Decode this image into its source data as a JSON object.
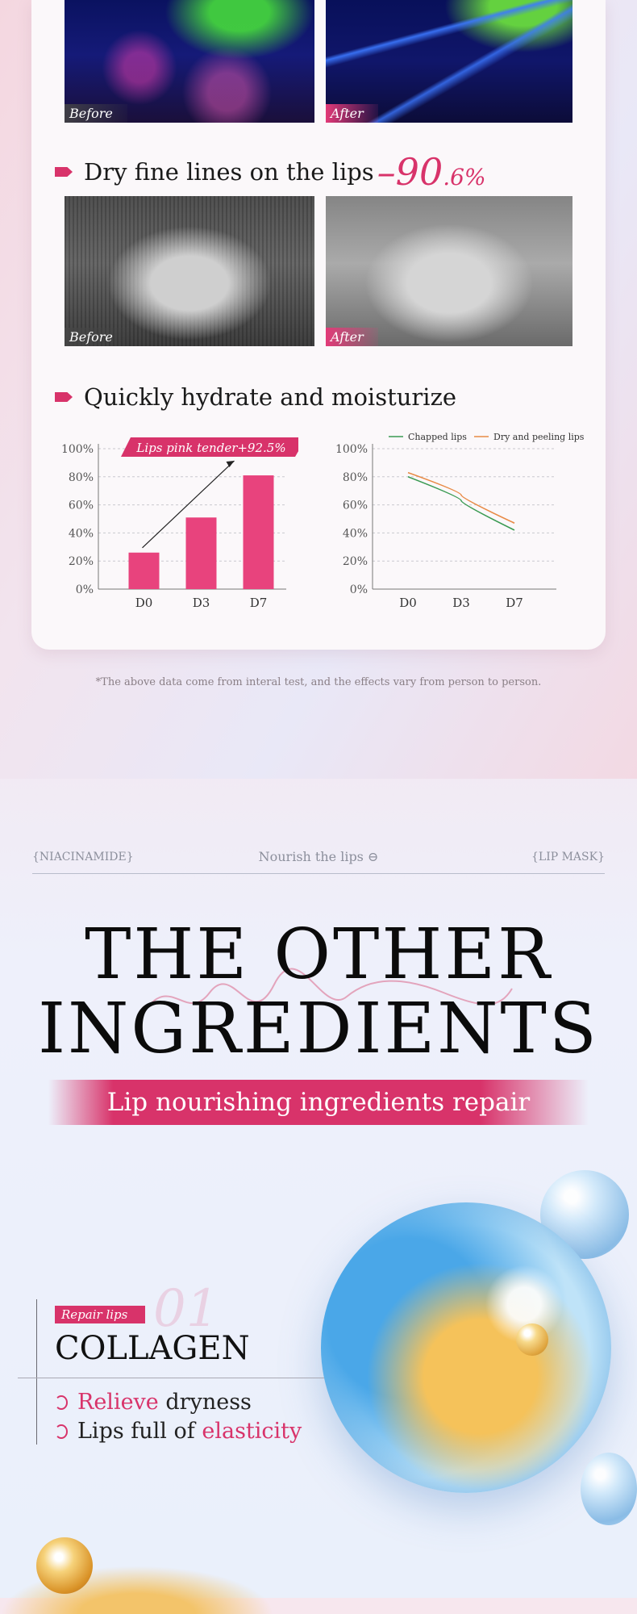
{
  "labels": {
    "before": "Before",
    "after": "After"
  },
  "section1": {
    "heading": "Dry fine lines on the lips",
    "stat_main": "–90",
    "stat_small": ".6%"
  },
  "section2": {
    "heading": "Quickly hydrate and moisturize"
  },
  "colors": {
    "accent": "#d8336a",
    "bar": "#e8437d",
    "chapped": "#3a9a52",
    "peeling": "#e88a45"
  },
  "chart_data": [
    {
      "type": "bar",
      "annotation": "Lips pink tender+92.5%",
      "categories": [
        "D0",
        "D3",
        "D7"
      ],
      "values": [
        26,
        51,
        81
      ],
      "ylim": [
        0,
        100
      ],
      "yticks": [
        "0%",
        "20%",
        "40%",
        "60%",
        "80%",
        "100%"
      ]
    },
    {
      "type": "line",
      "x": [
        "D0",
        "D3",
        "D7"
      ],
      "series": [
        {
          "name": "Chapped lips",
          "values": [
            80,
            63,
            42
          ]
        },
        {
          "name": "Dry and peeling lips",
          "values": [
            83,
            67,
            47
          ]
        }
      ],
      "ylim": [
        0,
        100
      ],
      "yticks": [
        "0%",
        "20%",
        "40%",
        "60%",
        "80%",
        "100%"
      ],
      "legend": "top-right"
    }
  ],
  "note": "*The above data come from interal test, and the effects vary from person to person.",
  "ingredients": {
    "tag_left": "{NIACINAMIDE}",
    "tag_center": "Nourish the lips",
    "tag_right": "{LIP MASK}",
    "title_line1": "THE OTHER",
    "title_line2": "INGREDIENTS",
    "ribbon": "Lip nourishing ingredients repair"
  },
  "collagen": {
    "pill": "Repair lips",
    "number": "01",
    "name": "COLLAGEN",
    "f1_pink": "Relieve",
    "f1_rest": " dryness",
    "f2_start": "Lips full of ",
    "f2_pink": "elasticity"
  }
}
